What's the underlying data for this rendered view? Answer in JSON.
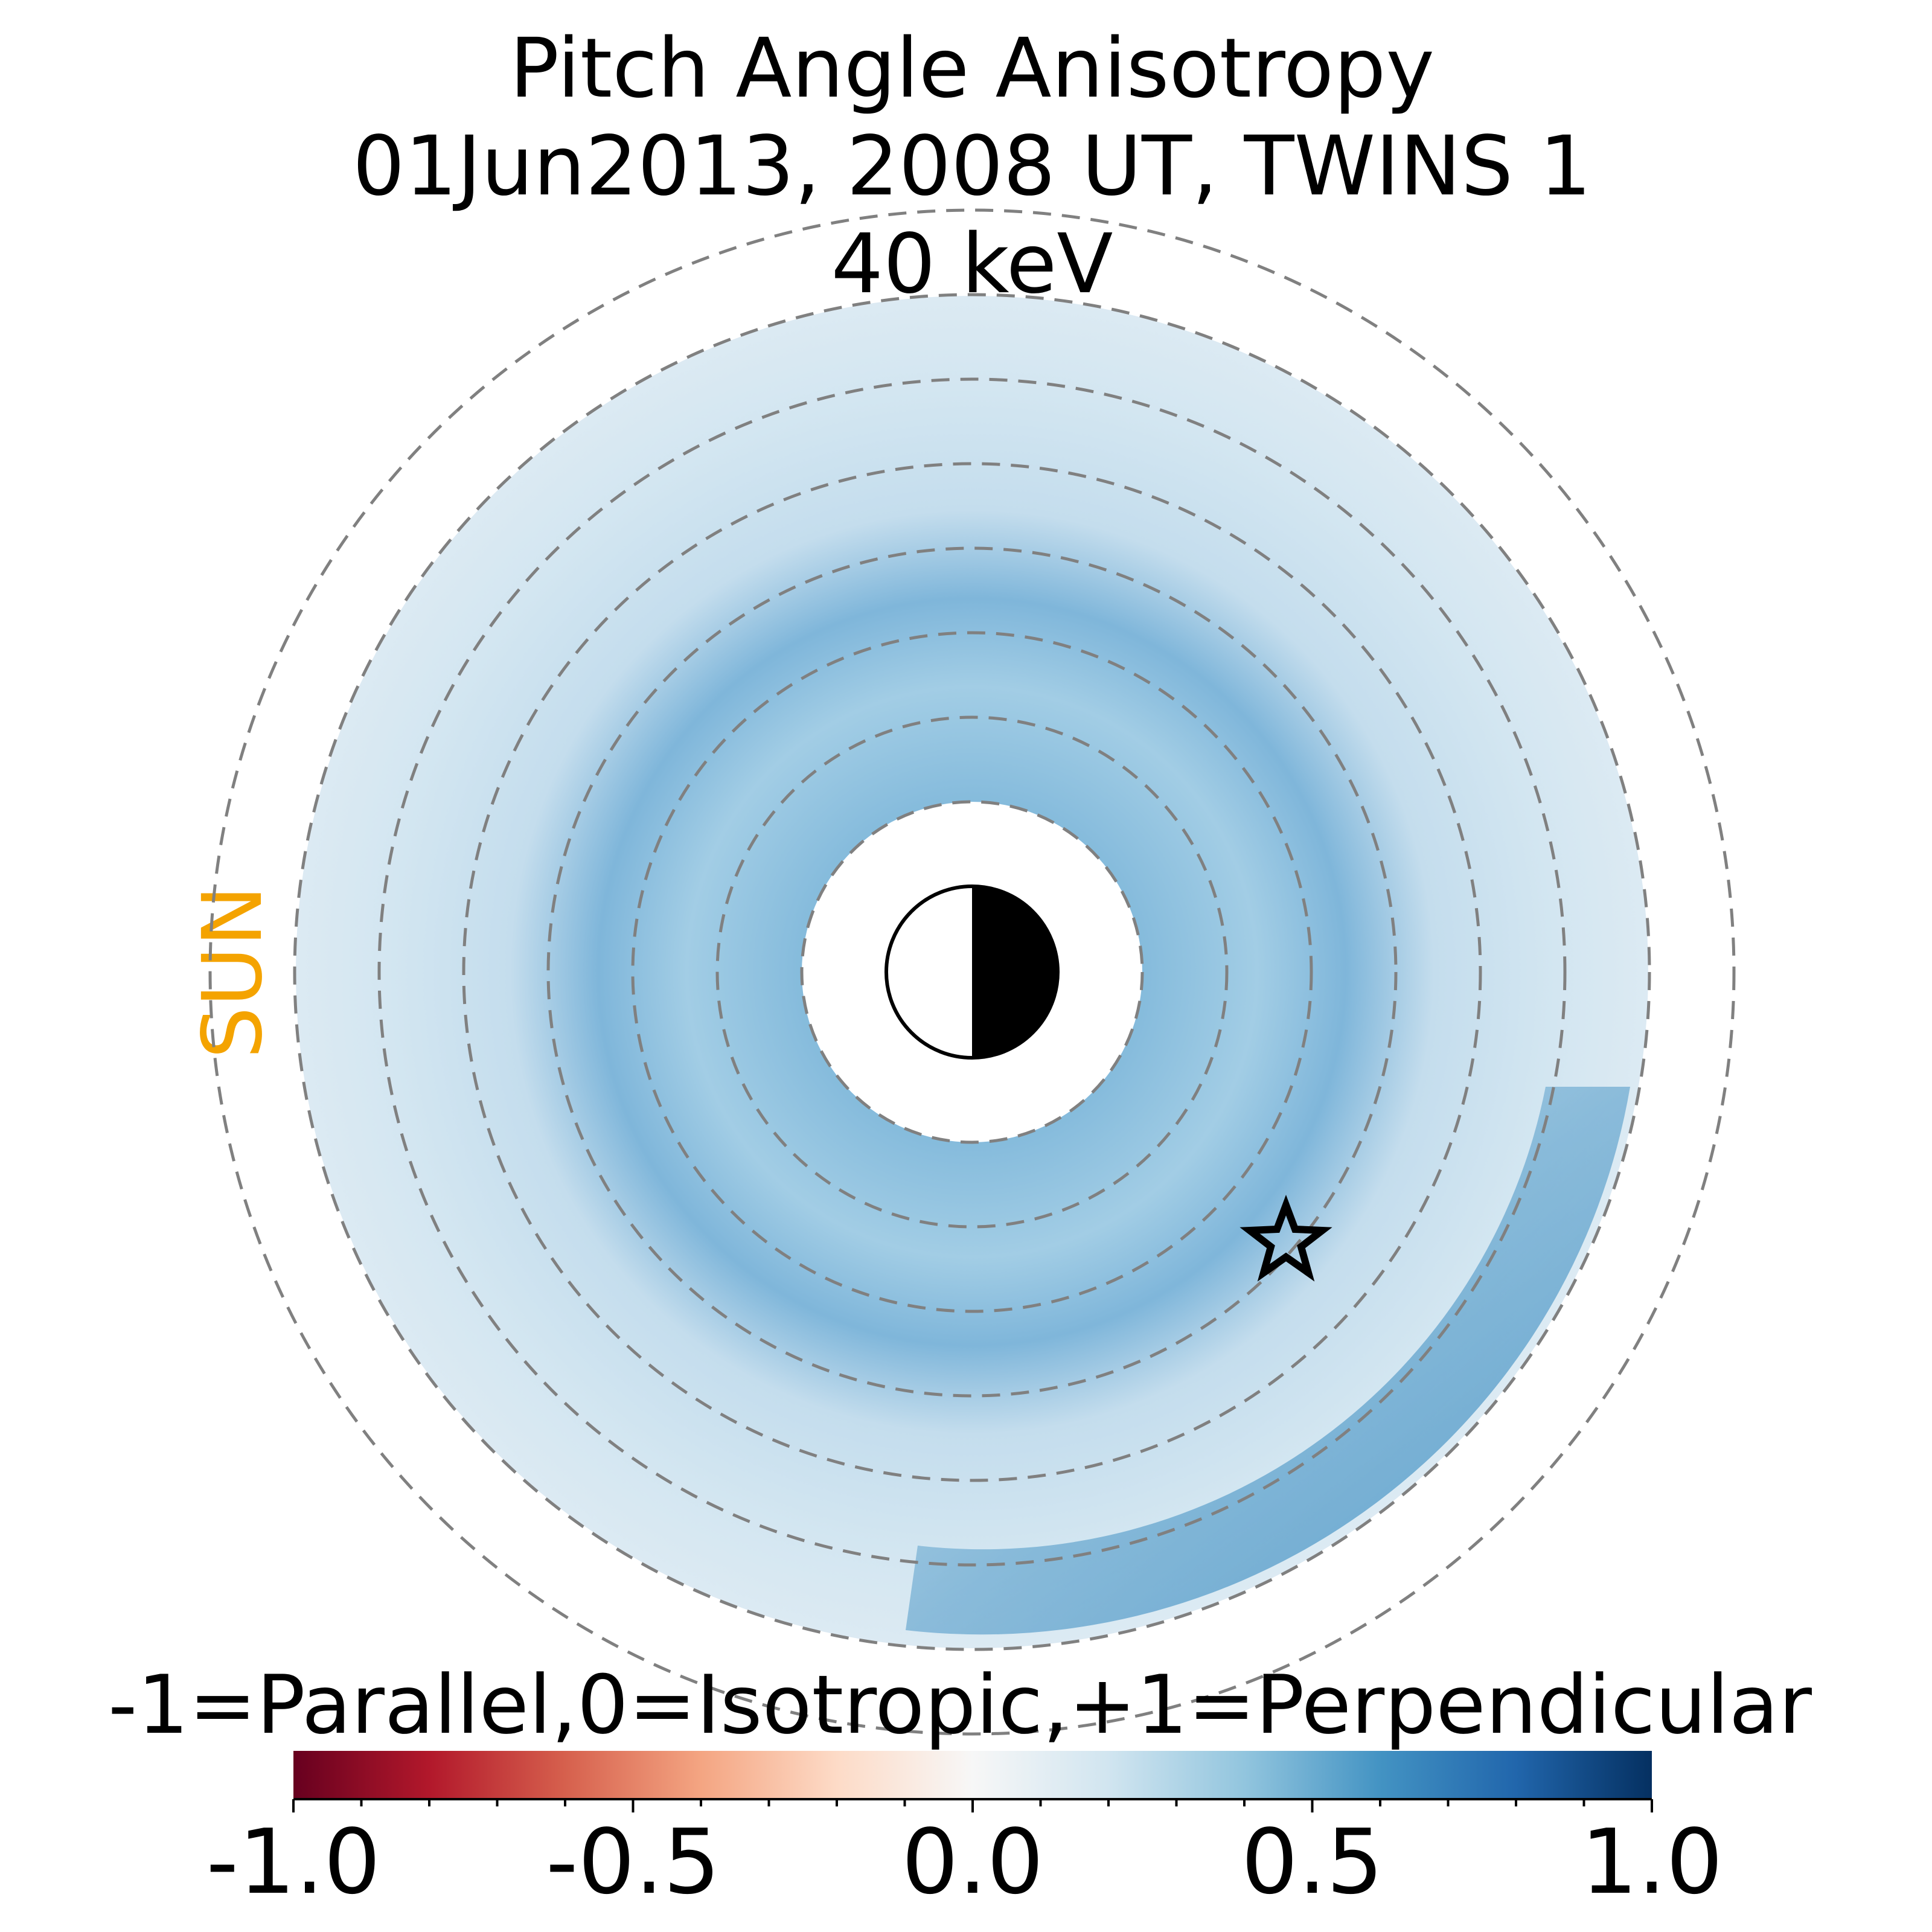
{
  "chart_data": {
    "type": "heatmap",
    "title": [
      "Pitch Angle Anisotropy",
      "01Jun2013, 2008 UT,  TWINS 1",
      "40 keV"
    ],
    "sun_label": "SUN",
    "colorbar": {
      "label": "-1=Parallel,0=Isotropic,+1=Perpendicular",
      "range": [
        -1.0,
        1.0
      ],
      "ticks": [
        -1.0,
        -0.5,
        0.0,
        0.5,
        1.0
      ],
      "tick_labels": [
        "-1.0",
        "-0.5",
        "0.0",
        "0.5",
        "1.0"
      ],
      "colormap": "RdBu",
      "colormap_stops": [
        "#67001f",
        "#b2182b",
        "#d6604d",
        "#f4a582",
        "#fddbc7",
        "#f7f7f7",
        "#d1e5f0",
        "#92c5de",
        "#4393c3",
        "#2166ac",
        "#053061"
      ]
    },
    "grid": {
      "style": "dashed circles",
      "color": "#808080",
      "circle_count": 8
    },
    "earth_marker": "half-shaded circle, night side to the right",
    "star_marker": "star outline, lower-right",
    "approx_anisotropy": {
      "background": 0.15,
      "inner_band": 0.35,
      "outer_band_dusk": 0.55
    }
  }
}
